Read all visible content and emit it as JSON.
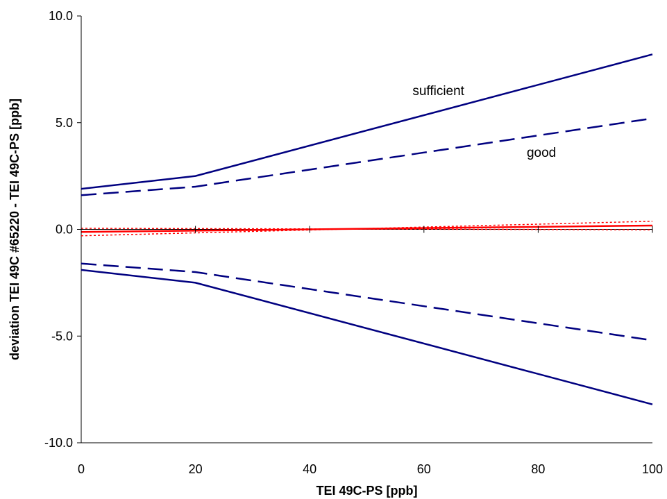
{
  "chart_data": {
    "type": "line",
    "xlabel": "TEI 49C-PS [ppb]",
    "ylabel": "deviation TEI 49C #65220 - TEI 49C-PS [ppb]",
    "xlim": [
      0,
      100
    ],
    "ylim": [
      -10,
      10
    ],
    "x_ticks": [
      0,
      20,
      40,
      60,
      80,
      100
    ],
    "x_tick_labels": [
      "0",
      "20",
      "40",
      "60",
      "80",
      "100"
    ],
    "y_ticks": [
      10,
      5,
      0,
      -5,
      -10
    ],
    "y_tick_labels": [
      "10.0",
      "5.0",
      "0.0",
      "-5.0",
      "-10.0"
    ],
    "grid": false,
    "legend": "none",
    "annotations": [
      {
        "text": "sufficient",
        "x": 58,
        "y": 6.3
      },
      {
        "text": "good",
        "x": 78,
        "y": 3.4
      }
    ],
    "series": [
      {
        "x": [
          0,
          20,
          100
        ],
        "values": [
          1.9,
          2.5,
          8.2
        ],
        "color": "#000080",
        "style": "solid",
        "width": 2.5
      },
      {
        "x": [
          0,
          20,
          100
        ],
        "values": [
          -1.9,
          -2.5,
          -8.2
        ],
        "color": "#000080",
        "style": "solid",
        "width": 2.5
      },
      {
        "x": [
          0,
          20,
          100
        ],
        "values": [
          1.6,
          2.0,
          5.2
        ],
        "color": "#000080",
        "style": "dashed",
        "width": 2.5
      },
      {
        "x": [
          0,
          20,
          100
        ],
        "values": [
          -1.6,
          -2.0,
          -5.2
        ],
        "color": "#000080",
        "style": "dashed",
        "width": 2.5
      },
      {
        "x": [
          0,
          100
        ],
        "values": [
          -0.12,
          0.18
        ],
        "color": "#ff0000",
        "style": "solid",
        "width": 2.5
      },
      {
        "x": [
          0,
          100
        ],
        "values": [
          -0.3,
          0.38
        ],
        "color": "#ff0000",
        "style": "dotted",
        "width": 1.5
      },
      {
        "x": [
          0,
          100
        ],
        "values": [
          0.05,
          -0.02
        ],
        "color": "#ff0000",
        "style": "dotted",
        "width": 1.5
      }
    ]
  }
}
